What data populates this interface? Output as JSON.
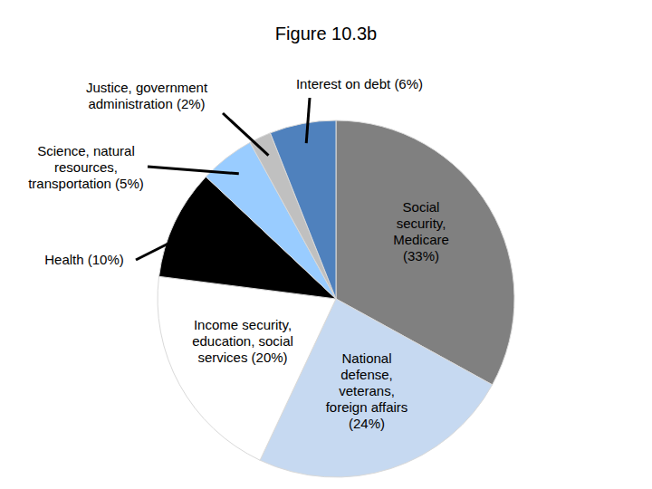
{
  "chart_data": {
    "type": "pie",
    "title": "Figure 10.3b",
    "categories": [
      "Social security, Medicare",
      "National defense, veterans, foreign affairs",
      "Income security, education, social services",
      "Health",
      "Science, natural resources, transportation",
      "Justice, government administration",
      "Interest on debt"
    ],
    "values": [
      33,
      24,
      20,
      10,
      5,
      2,
      6
    ],
    "value_labels": [
      "(33%)",
      "(24%)",
      "(20%)",
      "(10%)",
      "(5%)",
      "(2%)",
      "(6%)"
    ],
    "colors": [
      "#808080",
      "#c6d9f1",
      "#ffffff",
      "#000000",
      "#99ccff",
      "#c0c0c0",
      "#4f81bd"
    ],
    "data_labels": true
  }
}
